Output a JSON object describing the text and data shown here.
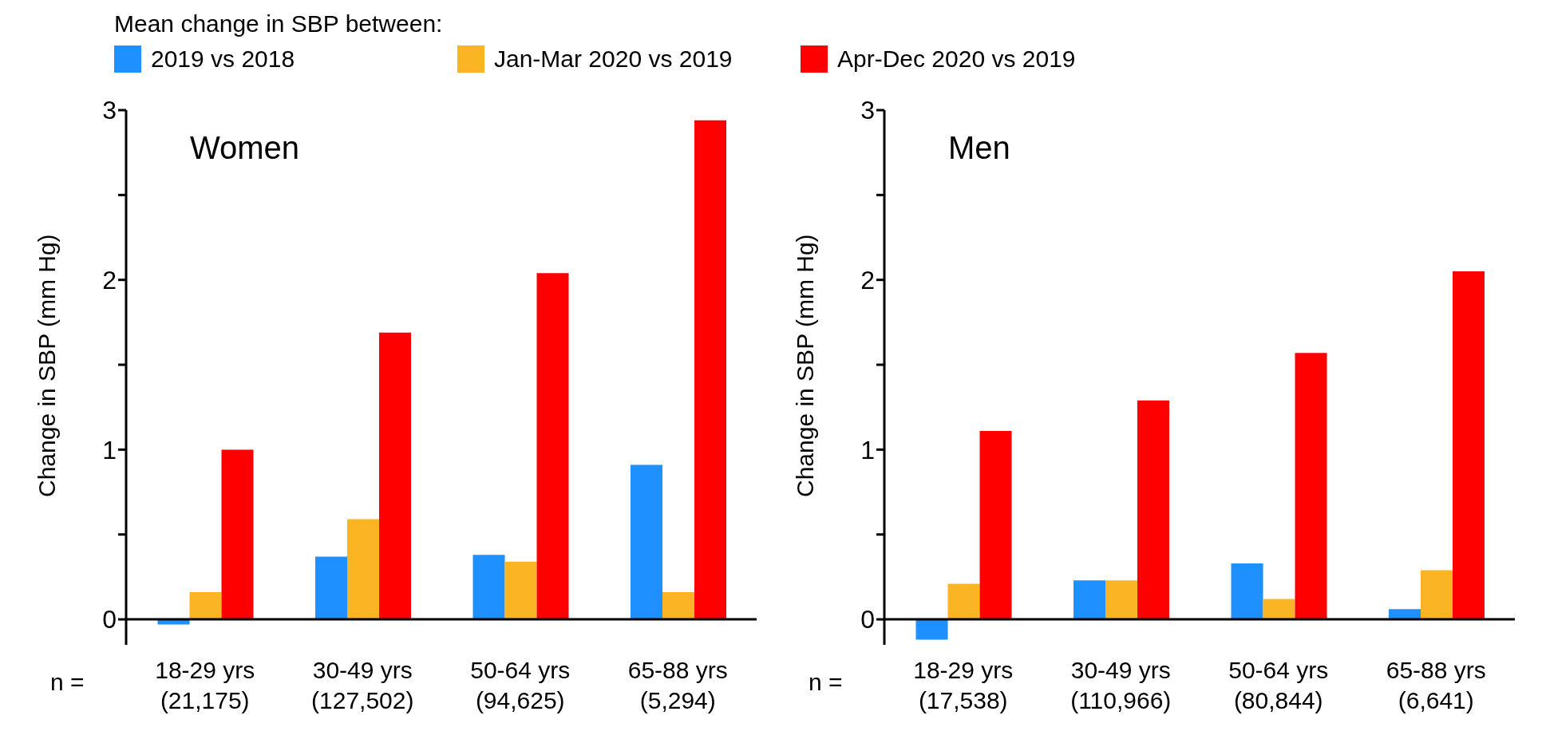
{
  "chart_data": [
    {
      "type": "bar",
      "title": "Women",
      "ylabel": "Change in SBP (mm Hg)",
      "legend_title": "Mean change in SBP between:",
      "legend": "top",
      "annotations": [
        "n ="
      ],
      "categories": [
        "18-29 yrs\n(21,175)",
        "30-49 yrs\n(127,502)",
        "50-64 yrs\n(94,625)",
        "65-88 yrs\n(5,294)"
      ],
      "series": [
        {
          "name": "2019 vs 2018",
          "color": "#1e90ff",
          "values": [
            -0.03,
            0.37,
            0.38,
            0.91
          ]
        },
        {
          "name": "Jan-Mar 2020 vs 2019",
          "color": "#fbb424",
          "values": [
            0.16,
            0.59,
            0.34,
            0.16
          ]
        },
        {
          "name": "Apr-Dec 2020 vs 2019",
          "color": "#ff0000",
          "values": [
            1.0,
            1.69,
            2.04,
            2.94
          ]
        }
      ],
      "ylim": [
        -0.15,
        3
      ],
      "yticks": [
        0,
        {
          "value": 0.5,
          "label": null
        },
        1,
        {
          "value": 1.5,
          "label": null
        },
        2,
        {
          "value": 2.5,
          "label": null
        },
        3
      ],
      "grid": false
    },
    {
      "type": "bar",
      "title": "Men",
      "ylabel": "Change in SBP (mm Hg)",
      "annotations": [
        "n ="
      ],
      "categories": [
        "18-29 yrs\n(17,538)",
        "30-49 yrs\n(110,966)",
        "50-64 yrs\n(80,844)",
        "65-88 yrs\n(6,641)"
      ],
      "series": [
        {
          "color": "#1e90ff",
          "values": [
            -0.12,
            0.23,
            0.33,
            0.06
          ]
        },
        {
          "color": "#fbb424",
          "values": [
            0.21,
            0.23,
            0.12,
            0.29
          ]
        },
        {
          "color": "#ff0000",
          "values": [
            1.11,
            1.29,
            1.57,
            2.05
          ]
        }
      ],
      "ylim": [
        -0.15,
        3
      ],
      "yticks": [
        0,
        {
          "value": 0.5,
          "label": null
        },
        1,
        {
          "value": 1.5,
          "label": null
        },
        2,
        {
          "value": 2.5,
          "label": null
        },
        3
      ],
      "grid": false
    }
  ]
}
